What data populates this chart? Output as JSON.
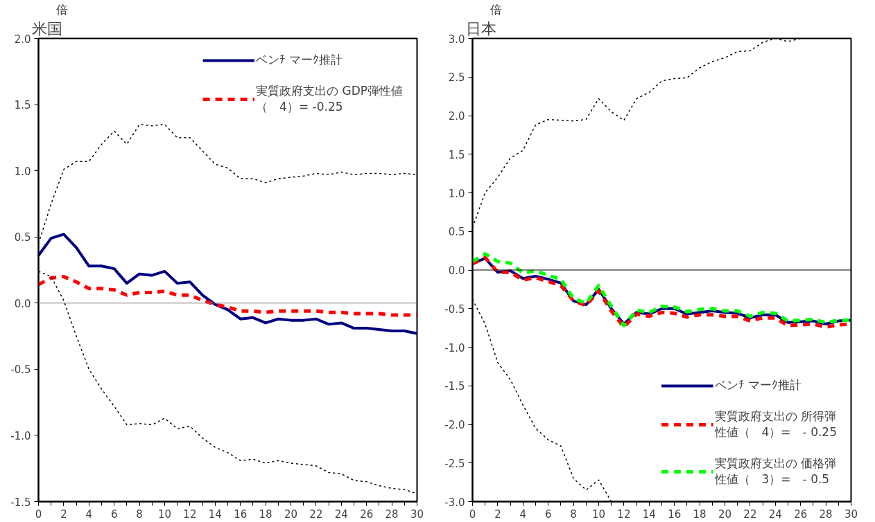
{
  "chart_data": [
    {
      "type": "line",
      "title": "米国",
      "ylabel": "倍",
      "legend": "top right",
      "grid": false,
      "x": [
        0,
        1,
        2,
        3,
        4,
        5,
        6,
        7,
        8,
        9,
        10,
        11,
        12,
        13,
        14,
        15,
        16,
        17,
        18,
        19,
        20,
        21,
        22,
        23,
        24,
        25,
        26,
        27,
        28,
        29,
        30
      ],
      "xlim": [
        0,
        30
      ],
      "xticks": [
        0,
        2,
        4,
        6,
        8,
        10,
        12,
        14,
        16,
        18,
        20,
        22,
        24,
        26,
        28,
        30
      ],
      "ylim": [
        -1.5,
        2.0
      ],
      "yticks": [
        {
          "value": -1.5,
          "label": "-1.5"
        },
        {
          "value": -1.0,
          "label": "-1.0"
        },
        {
          "value": -0.5,
          "label": "-0.5"
        },
        {
          "value": 0,
          "label": "0.0"
        },
        {
          "value": 0.5,
          "label": "0.5"
        },
        {
          "value": 1.0,
          "label": "1.0"
        },
        {
          "value": 1.5,
          "label": "1.5"
        },
        {
          "value": 2.0,
          "label": "2.0"
        }
      ],
      "ref_lines": [
        {
          "axis": "y",
          "value": 0,
          "color": "#808080"
        }
      ],
      "series": [
        {
          "name": "ベンﾁ マーｸ推計",
          "color": "#000080",
          "line_style": "solid",
          "values": [
            0.36,
            0.49,
            0.52,
            0.42,
            0.28,
            0.28,
            0.26,
            0.15,
            0.22,
            0.21,
            0.24,
            0.15,
            0.16,
            0.06,
            -0.01,
            -0.05,
            -0.12,
            -0.11,
            -0.15,
            -0.12,
            -0.13,
            -0.13,
            -0.12,
            -0.16,
            -0.15,
            -0.19,
            -0.19,
            -0.2,
            -0.21,
            -0.21,
            -0.23
          ]
        },
        {
          "name": "実質政府支出の GDP弾性値（　4）= -0.25",
          "color": "#ff0000",
          "line_style": "dashed",
          "values": [
            0.14,
            0.19,
            0.2,
            0.16,
            0.11,
            0.11,
            0.1,
            0.06,
            0.08,
            0.08,
            0.09,
            0.06,
            0.06,
            0.02,
            -0.01,
            -0.03,
            -0.06,
            -0.06,
            -0.07,
            -0.06,
            -0.06,
            -0.06,
            -0.06,
            -0.07,
            -0.07,
            -0.08,
            -0.08,
            -0.08,
            -0.09,
            -0.09,
            -0.09
          ]
        },
        {
          "color": "#000000",
          "line_style": "dotted",
          "values": [
            0.45,
            0.75,
            1.01,
            1.07,
            1.07,
            1.2,
            1.3,
            1.2,
            1.35,
            1.34,
            1.35,
            1.25,
            1.25,
            1.15,
            1.05,
            1.02,
            0.94,
            0.94,
            0.91,
            0.94,
            0.95,
            0.96,
            0.98,
            0.97,
            0.99,
            0.97,
            0.98,
            0.98,
            0.97,
            0.98,
            0.97
          ]
        },
        {
          "color": "#000000",
          "line_style": "dotted",
          "values": [
            0.24,
            0.2,
            0.02,
            -0.25,
            -0.5,
            -0.65,
            -0.78,
            -0.92,
            -0.91,
            -0.92,
            -0.87,
            -0.95,
            -0.93,
            -1.02,
            -1.09,
            -1.13,
            -1.19,
            -1.18,
            -1.21,
            -1.19,
            -1.21,
            -1.22,
            -1.23,
            -1.28,
            -1.29,
            -1.34,
            -1.35,
            -1.38,
            -1.4,
            -1.41,
            -1.44
          ]
        }
      ]
    },
    {
      "type": "line",
      "title": "日本",
      "ylabel": "倍",
      "legend": "bottom right",
      "grid": false,
      "x": [
        0,
        1,
        2,
        3,
        4,
        5,
        6,
        7,
        8,
        9,
        10,
        11,
        12,
        13,
        14,
        15,
        16,
        17,
        18,
        19,
        20,
        21,
        22,
        23,
        24,
        25,
        26,
        27,
        28,
        29,
        30
      ],
      "xlim": [
        0,
        30
      ],
      "xticks": [
        0,
        2,
        4,
        6,
        8,
        10,
        12,
        14,
        16,
        18,
        20,
        22,
        24,
        26,
        28,
        30
      ],
      "ylim": [
        -3.0,
        3.0
      ],
      "yticks": [
        {
          "value": -3.0,
          "label": "-3.0"
        },
        {
          "value": -2.5,
          "label": "-2.5"
        },
        {
          "value": -2.0,
          "label": "-2.0"
        },
        {
          "value": -1.5,
          "label": "-1.5"
        },
        {
          "value": -1.0,
          "label": "-1.0"
        },
        {
          "value": -0.5,
          "label": "-0.5"
        },
        {
          "value": 0,
          "label": "0.0"
        },
        {
          "value": 0.5,
          "label": "0.5"
        },
        {
          "value": 1.0,
          "label": "1.0"
        },
        {
          "value": 1.5,
          "label": "1.5"
        },
        {
          "value": 2.0,
          "label": "2.0"
        },
        {
          "value": 2.5,
          "label": "2.5"
        },
        {
          "value": 3.0,
          "label": "3.0"
        }
      ],
      "ref_lines": [
        {
          "axis": "y",
          "value": 0,
          "color": "#000000"
        }
      ],
      "series": [
        {
          "name": "ベンﾁ マーｸ推計",
          "color": "#000080",
          "line_style": "solid",
          "values": [
            0.09,
            0.15,
            -0.03,
            -0.01,
            -0.11,
            -0.08,
            -0.12,
            -0.17,
            -0.4,
            -0.45,
            -0.25,
            -0.5,
            -0.7,
            -0.55,
            -0.57,
            -0.5,
            -0.5,
            -0.57,
            -0.55,
            -0.53,
            -0.55,
            -0.56,
            -0.62,
            -0.58,
            -0.58,
            -0.68,
            -0.67,
            -0.66,
            -0.7,
            -0.66,
            -0.65
          ]
        },
        {
          "name": "実質政府支出の 所得弾性値（　4）=　- 0.25",
          "color": "#ff0000",
          "line_style": "dashed",
          "values": [
            0.08,
            0.16,
            -0.03,
            -0.03,
            -0.13,
            -0.1,
            -0.15,
            -0.2,
            -0.4,
            -0.46,
            -0.27,
            -0.53,
            -0.74,
            -0.57,
            -0.6,
            -0.55,
            -0.56,
            -0.61,
            -0.58,
            -0.58,
            -0.6,
            -0.6,
            -0.66,
            -0.62,
            -0.62,
            -0.72,
            -0.71,
            -0.7,
            -0.74,
            -0.71,
            -0.7
          ]
        },
        {
          "name": "実質政府支出の 価格弾性値（　3）=　- 0.5",
          "color": "#00ff00",
          "line_style": "dashed",
          "values": [
            0.11,
            0.21,
            0.11,
            0.09,
            -0.04,
            -0.01,
            -0.07,
            -0.12,
            -0.37,
            -0.43,
            -0.2,
            -0.47,
            -0.72,
            -0.52,
            -0.55,
            -0.47,
            -0.48,
            -0.54,
            -0.51,
            -0.5,
            -0.53,
            -0.53,
            -0.6,
            -0.55,
            -0.56,
            -0.66,
            -0.65,
            -0.64,
            -0.68,
            -0.65,
            -0.65
          ]
        },
        {
          "color": "#000000",
          "line_style": "dotted",
          "values": [
            0.55,
            1.0,
            1.2,
            1.45,
            1.55,
            1.88,
            1.95,
            1.94,
            1.93,
            1.95,
            2.22,
            2.05,
            1.94,
            2.22,
            2.3,
            2.45,
            2.48,
            2.49,
            2.62,
            2.7,
            2.75,
            2.83,
            2.84,
            2.95,
            3.0,
            2.96,
            3.0,
            null,
            null,
            null,
            null
          ]
        },
        {
          "color": "#000000",
          "line_style": "dotted",
          "values": [
            -0.38,
            -0.7,
            -1.2,
            -1.42,
            -1.75,
            -2.05,
            -2.2,
            -2.28,
            -2.7,
            -2.85,
            -2.72,
            -3.0,
            null,
            null,
            null,
            null,
            null,
            null,
            null,
            null,
            null,
            null,
            null,
            null,
            null,
            null,
            null,
            null,
            null,
            null,
            null
          ]
        }
      ]
    }
  ]
}
